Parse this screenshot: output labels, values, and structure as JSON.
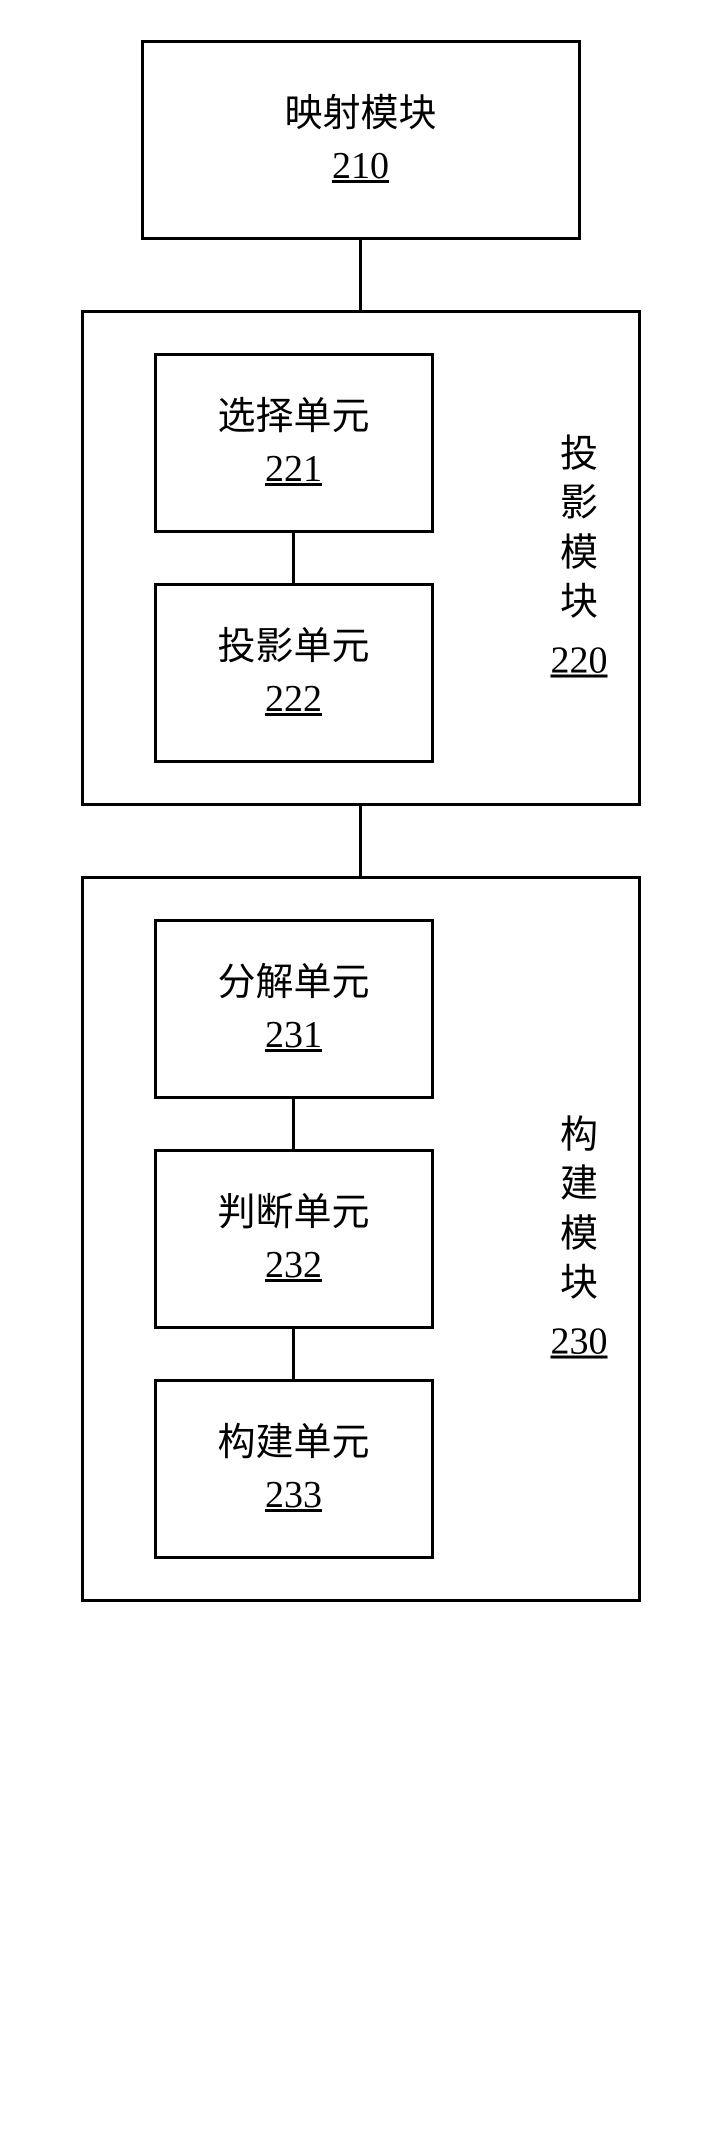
{
  "diagram": {
    "type": "flowchart",
    "background_color": "#ffffff",
    "border_color": "#000000",
    "border_width": 3,
    "font_family": "SimSun",
    "font_size": 38,
    "text_color": "#000000",
    "modules": [
      {
        "id": "mapping",
        "label": "映射模块",
        "number": "210",
        "type": "simple"
      },
      {
        "id": "projection",
        "label_chars": [
          "投",
          "影",
          "模",
          "块"
        ],
        "number": "220",
        "type": "container",
        "units": [
          {
            "label": "选择单元",
            "number": "221"
          },
          {
            "label": "投影单元",
            "number": "222"
          }
        ]
      },
      {
        "id": "construction",
        "label_chars": [
          "构",
          "建",
          "模",
          "块"
        ],
        "number": "230",
        "type": "container",
        "units": [
          {
            "label": "分解单元",
            "number": "231"
          },
          {
            "label": "判断单元",
            "number": "232"
          },
          {
            "label": "构建单元",
            "number": "233"
          }
        ]
      }
    ]
  }
}
